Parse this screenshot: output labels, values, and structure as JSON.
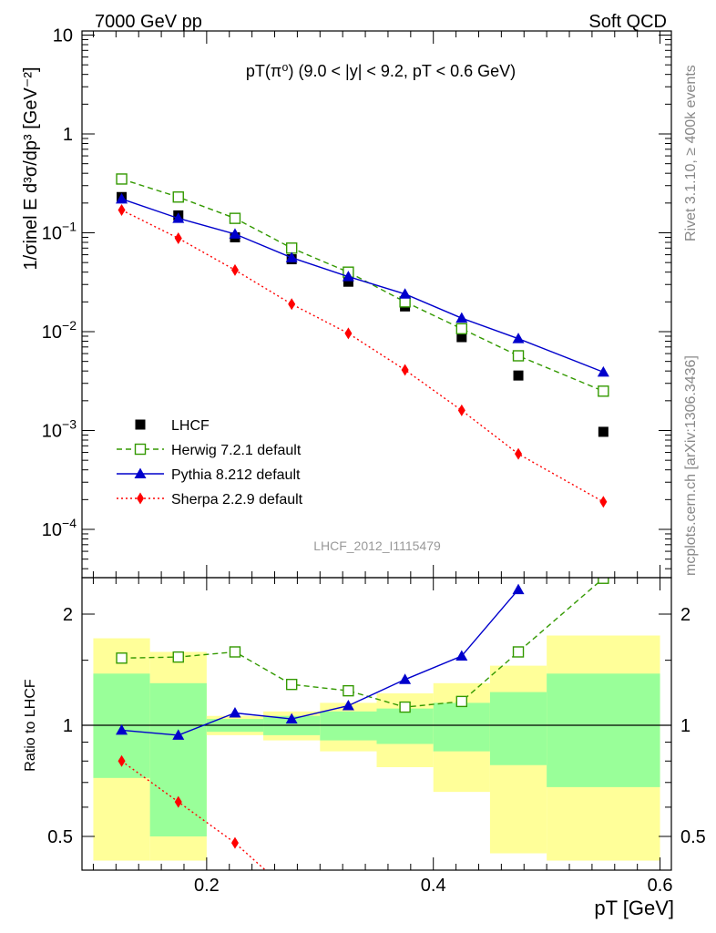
{
  "header": {
    "left": "7000 GeV pp",
    "right": "Soft QCD"
  },
  "side_text": {
    "top": "Rivet 3.1.10, ≥ 400k events",
    "bottom": "mcplots.cern.ch [arXiv:1306.3436]"
  },
  "watermark": "LHCF_2012_I1115479",
  "colors": {
    "lhcf": "#000000",
    "herwig": "#339900",
    "pythia": "#0000cc",
    "sherpa": "#ff0000",
    "band_outer": "#ffff99",
    "band_inner": "#99ff99"
  },
  "chart_data": [
    {
      "type": "line",
      "panel": "main",
      "title": "pT(π⁰) (9.0 < |y| < 9.2, pT < 0.6 GeV)",
      "ylabel": "1/σinel E d³σ/dp³ [GeV⁻²]",
      "xlabel": "",
      "yscale": "log",
      "xlim": [
        0.09,
        0.61
      ],
      "ylim": [
        3e-05,
        12
      ],
      "ytick_labels": [
        "10",
        "1",
        "10⁻¹",
        "10⁻²",
        "10⁻³",
        "10⁻⁴"
      ],
      "legend_position": "bottom-left",
      "x": [
        0.125,
        0.175,
        0.225,
        0.275,
        0.325,
        0.375,
        0.425,
        0.475,
        0.55
      ],
      "series": [
        {
          "name": "LHCF",
          "style": "markers",
          "values": [
            0.23,
            0.15,
            0.09,
            0.054,
            0.032,
            0.018,
            0.0088,
            0.0036,
            0.00097
          ]
        },
        {
          "name": "Herwig 7.2.1 default",
          "style": "dashed",
          "values": [
            0.35,
            0.23,
            0.14,
            0.07,
            0.04,
            0.02,
            0.0107,
            0.0057,
            0.0025
          ]
        },
        {
          "name": "Pythia 8.212 default",
          "style": "solid",
          "values": [
            0.22,
            0.14,
            0.097,
            0.056,
            0.036,
            0.024,
            0.0137,
            0.0085,
            0.0039
          ]
        },
        {
          "name": "Sherpa 2.2.9 default",
          "style": "dotted",
          "values": [
            0.17,
            0.088,
            0.042,
            0.019,
            0.0096,
            0.0041,
            0.0016,
            0.00058,
            0.00019
          ]
        }
      ]
    },
    {
      "type": "line",
      "panel": "ratio",
      "ylabel": "Ratio to LHCF",
      "xlabel": "pT [GeV]",
      "yscale": "log",
      "xlim": [
        0.09,
        0.61
      ],
      "ylim": [
        0.43,
        2.3
      ],
      "xtick_labels": [
        "0.2",
        "0.4",
        "0.6"
      ],
      "xticks": [
        0.2,
        0.4,
        0.6
      ],
      "ytick_labels": [
        "2",
        "1",
        "0.5"
      ],
      "yticks": [
        2,
        1,
        0.5
      ],
      "x": [
        0.125,
        0.175,
        0.225,
        0.275,
        0.325,
        0.375,
        0.425,
        0.475,
        0.55
      ],
      "series": [
        {
          "name": "Herwig 7.2.1 default",
          "style": "dashed",
          "values": [
            1.52,
            1.53,
            1.58,
            1.29,
            1.24,
            1.12,
            1.16,
            1.58,
            2.5
          ]
        },
        {
          "name": "Pythia 8.212 default",
          "style": "solid",
          "values": [
            0.97,
            0.94,
            1.08,
            1.04,
            1.13,
            1.33,
            1.54,
            2.33,
            null
          ]
        },
        {
          "name": "Sherpa 2.2.9 default",
          "style": "dotted",
          "values": [
            0.8,
            0.62,
            0.48,
            0.35,
            null,
            null,
            null,
            null,
            null
          ]
        }
      ],
      "uncertainty_bands": [
        {
          "x_low": 0.1,
          "x_high": 0.15,
          "inner": [
            0.72,
            1.38
          ],
          "outer": [
            0.43,
            1.72
          ]
        },
        {
          "x_low": 0.15,
          "x_high": 0.2,
          "inner": [
            0.5,
            1.3
          ],
          "outer": [
            0.43,
            1.58
          ]
        },
        {
          "x_low": 0.2,
          "x_high": 0.25,
          "inner": [
            0.96,
            1.04
          ],
          "outer": [
            0.94,
            1.06
          ]
        },
        {
          "x_low": 0.25,
          "x_high": 0.3,
          "inner": [
            0.94,
            1.06
          ],
          "outer": [
            0.91,
            1.09
          ]
        },
        {
          "x_low": 0.3,
          "x_high": 0.35,
          "inner": [
            0.91,
            1.09
          ],
          "outer": [
            0.85,
            1.15
          ]
        },
        {
          "x_low": 0.35,
          "x_high": 0.4,
          "inner": [
            0.89,
            1.11
          ],
          "outer": [
            0.77,
            1.22
          ]
        },
        {
          "x_low": 0.4,
          "x_high": 0.45,
          "inner": [
            0.85,
            1.15
          ],
          "outer": [
            0.66,
            1.3
          ]
        },
        {
          "x_low": 0.45,
          "x_high": 0.5,
          "inner": [
            0.78,
            1.23
          ],
          "outer": [
            0.45,
            1.45
          ]
        },
        {
          "x_low": 0.5,
          "x_high": 0.6,
          "inner": [
            0.68,
            1.38
          ],
          "outer": [
            0.43,
            1.75
          ]
        }
      ]
    }
  ]
}
